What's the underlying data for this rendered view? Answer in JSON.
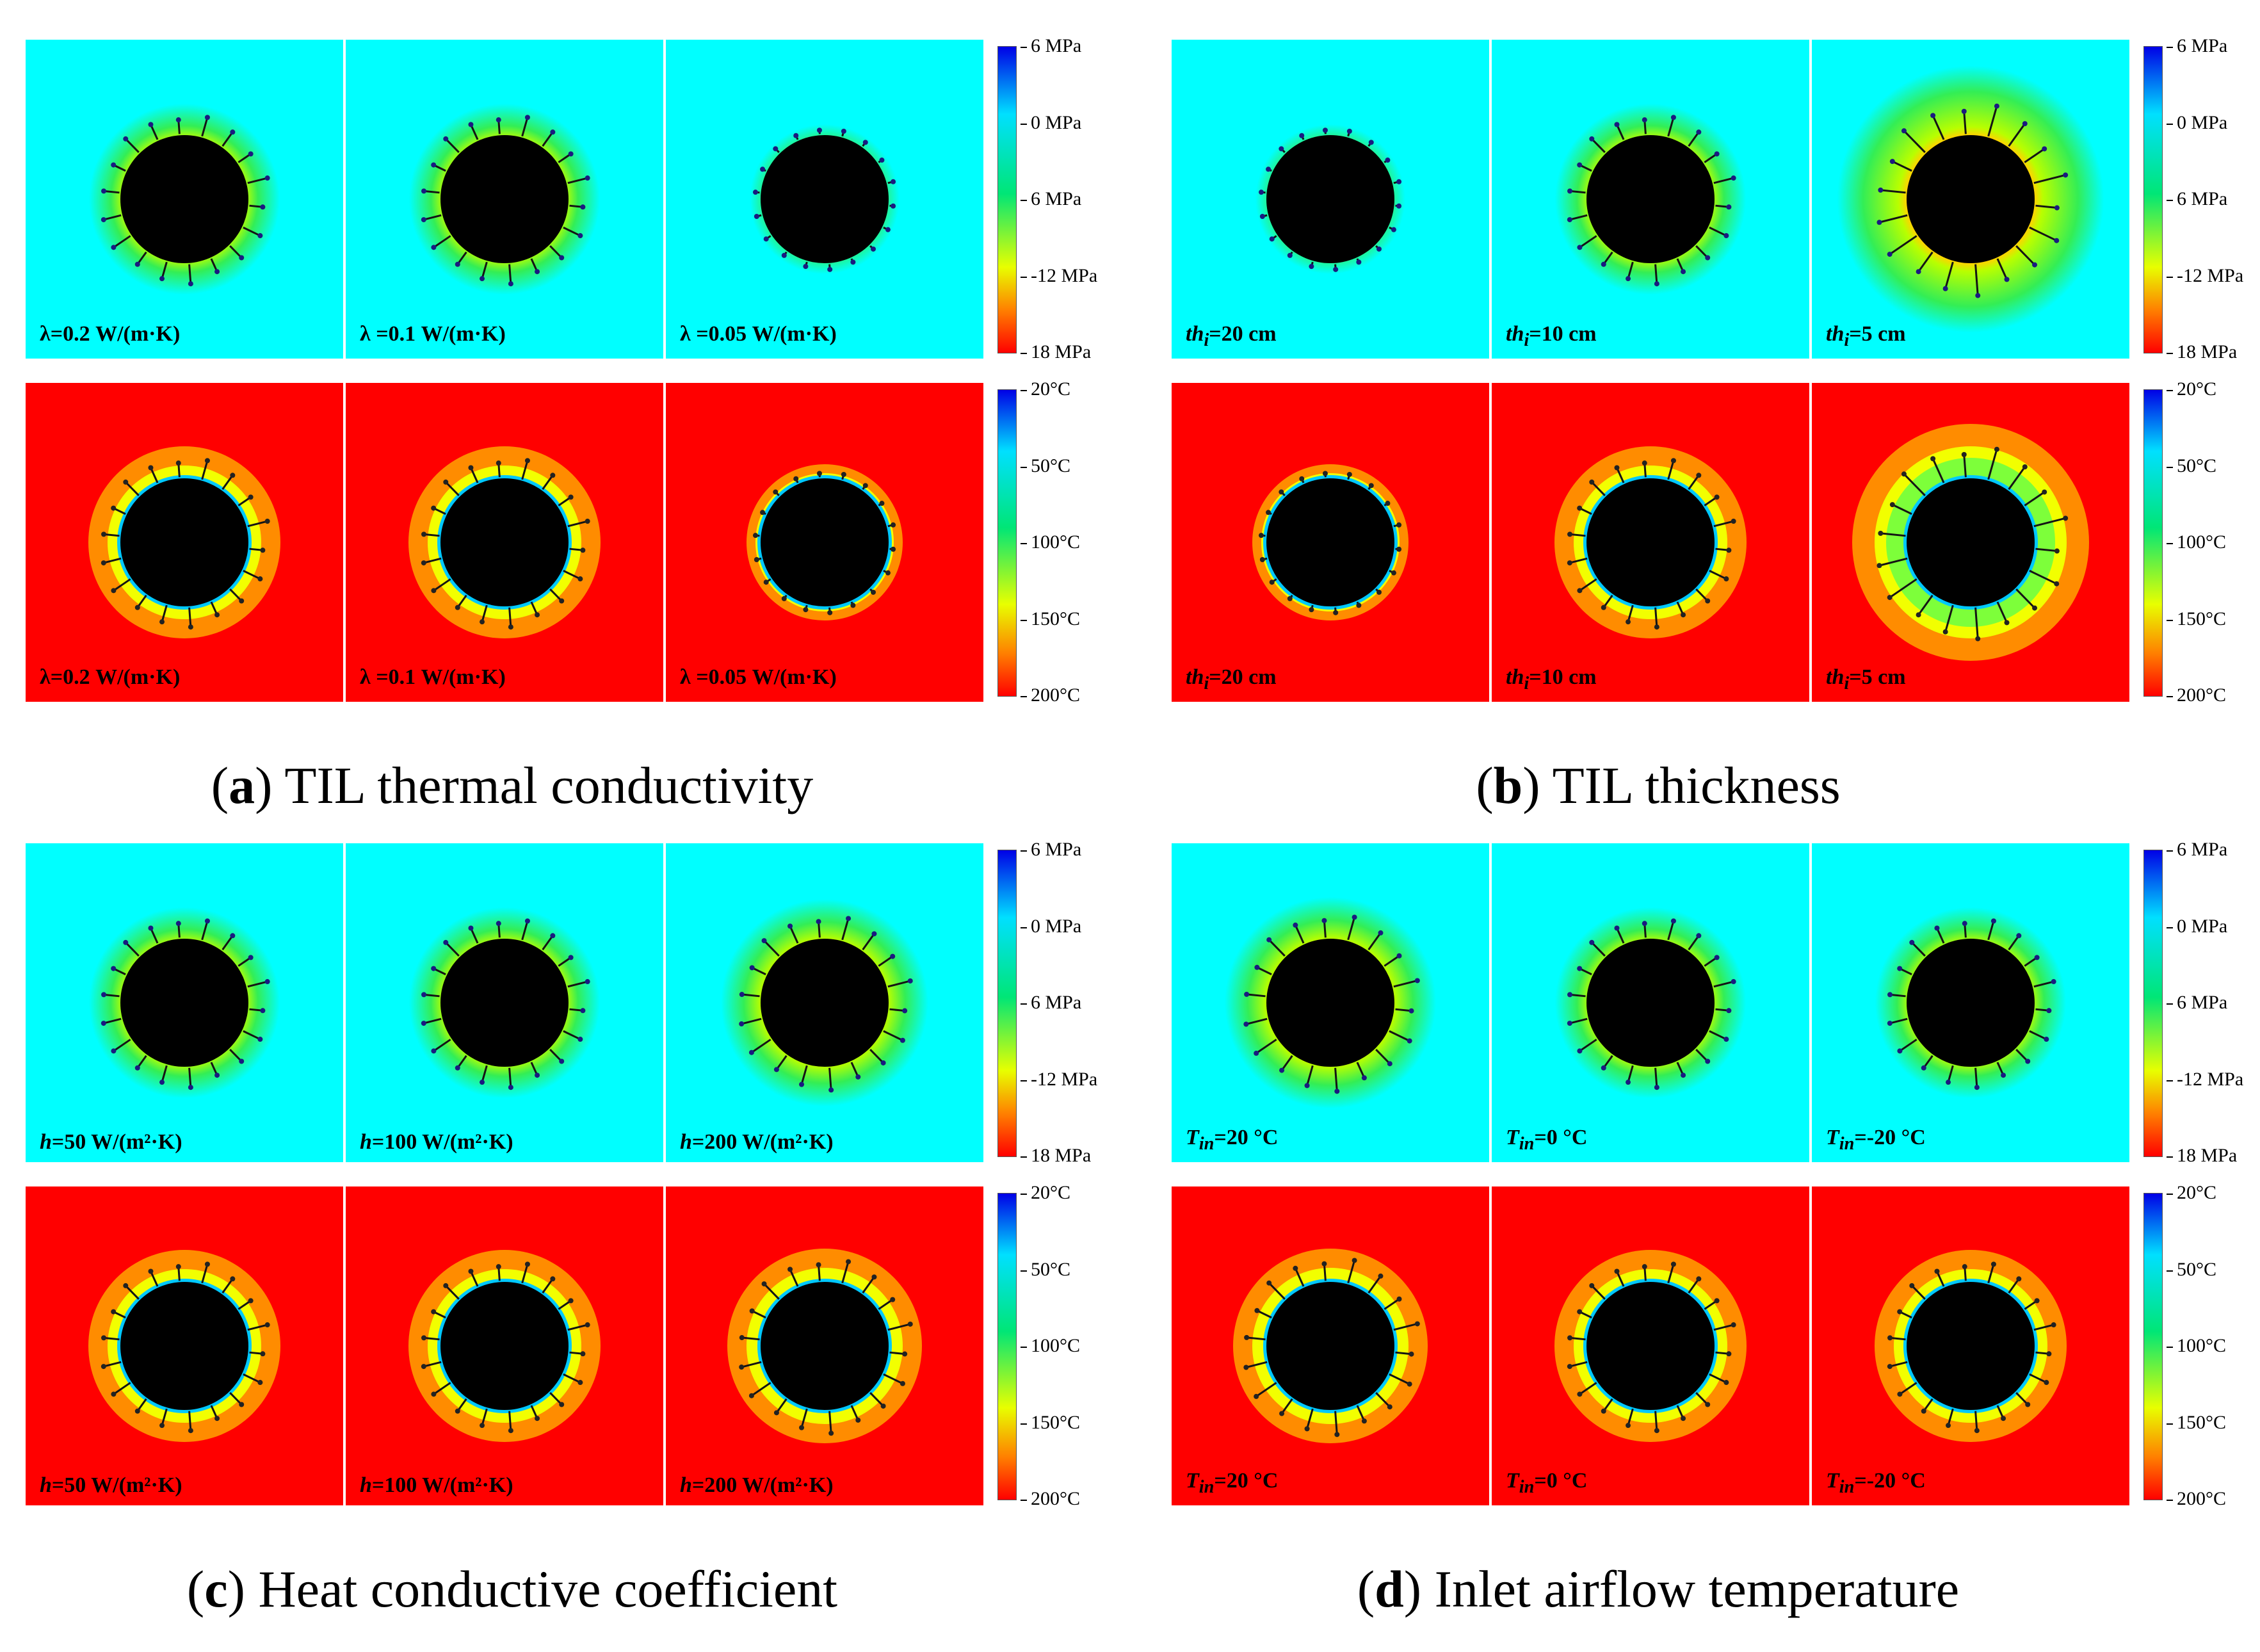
{
  "colors": {
    "stress_bg": "#00ffff",
    "temp_bg": "#ff0000",
    "ring_orange": "#ff8c00",
    "ring_yellow": "#f2ff00",
    "tunnel": "#000000"
  },
  "stress_scale": {
    "labels": [
      "6 MPa",
      "0 MPa",
      "6 MPa",
      "-12 MPa",
      "18 MPa"
    ]
  },
  "temp_scale": {
    "labels": [
      "20°C",
      "50°C",
      "100°C",
      "150°C",
      "200°C"
    ]
  },
  "panels": [
    {
      "letter": "a",
      "caption": "TIL thermal conductivity",
      "stress_labels": [
        {
          "sym": "λ",
          "italic": false,
          "sub": "",
          "rest": "=0.2 W/(m·K)"
        },
        {
          "sym": "λ",
          "italic": false,
          "sub": "",
          "rest": " =0.1 W/(m·K)"
        },
        {
          "sym": "λ",
          "italic": false,
          "sub": "",
          "rest": " =0.05 W/(m·K)"
        }
      ],
      "temp_labels": [
        {
          "sym": "λ",
          "italic": false,
          "sub": "",
          "rest": "=0.2 W/(m·K)"
        },
        {
          "sym": "λ",
          "italic": false,
          "sub": "",
          "rest": " =0.1 W/(m·K)"
        },
        {
          "sym": "λ",
          "italic": false,
          "sub": "",
          "rest": " =0.05 W/(m·K)"
        }
      ]
    },
    {
      "letter": "b",
      "caption": "TIL thickness",
      "stress_labels": [
        {
          "sym": "th",
          "italic": true,
          "sub": "i",
          "rest": "=20 cm"
        },
        {
          "sym": "th",
          "italic": true,
          "sub": "i",
          "rest": "=10 cm"
        },
        {
          "sym": "th",
          "italic": true,
          "sub": "i",
          "rest": "=5 cm"
        }
      ],
      "temp_labels": [
        {
          "sym": "th",
          "italic": true,
          "sub": "i",
          "rest": "=20 cm"
        },
        {
          "sym": "th",
          "italic": true,
          "sub": "i",
          "rest": "=10 cm"
        },
        {
          "sym": "th",
          "italic": true,
          "sub": "i",
          "rest": "=5 cm"
        }
      ]
    },
    {
      "letter": "c",
      "caption": "Heat conductive coefficient",
      "stress_labels": [
        {
          "sym": "h",
          "italic": true,
          "sub": "",
          "rest": "=50 W/(m²·K)"
        },
        {
          "sym": "h",
          "italic": true,
          "sub": "",
          "rest": "=100 W/(m²·K)"
        },
        {
          "sym": "h",
          "italic": true,
          "sub": "",
          "rest": "=200 W/(m²·K)"
        }
      ],
      "temp_labels": [
        {
          "sym": "h",
          "italic": true,
          "sub": "",
          "rest": "=50 W/(m²·K)"
        },
        {
          "sym": "h",
          "italic": true,
          "sub": "",
          "rest": "=100 W/(m²·K)"
        },
        {
          "sym": "h",
          "italic": true,
          "sub": "",
          "rest": "=200 W/(m²·K)"
        }
      ]
    },
    {
      "letter": "d",
      "caption": "Inlet airflow temperature",
      "stress_labels": [
        {
          "sym": "T",
          "italic": true,
          "sub": "in",
          "rest": "=20 °C"
        },
        {
          "sym": "T",
          "italic": true,
          "sub": "in",
          "rest": "=0 °C"
        },
        {
          "sym": "T",
          "italic": true,
          "sub": "in",
          "rest": "=-20 °C"
        }
      ],
      "temp_labels": [
        {
          "sym": "T",
          "italic": true,
          "sub": "in",
          "rest": "=20 °C"
        },
        {
          "sym": "T",
          "italic": true,
          "sub": "in",
          "rest": "=0 °C"
        },
        {
          "sym": "T",
          "italic": true,
          "sub": "in",
          "rest": "=-20 °C"
        }
      ]
    }
  ]
}
